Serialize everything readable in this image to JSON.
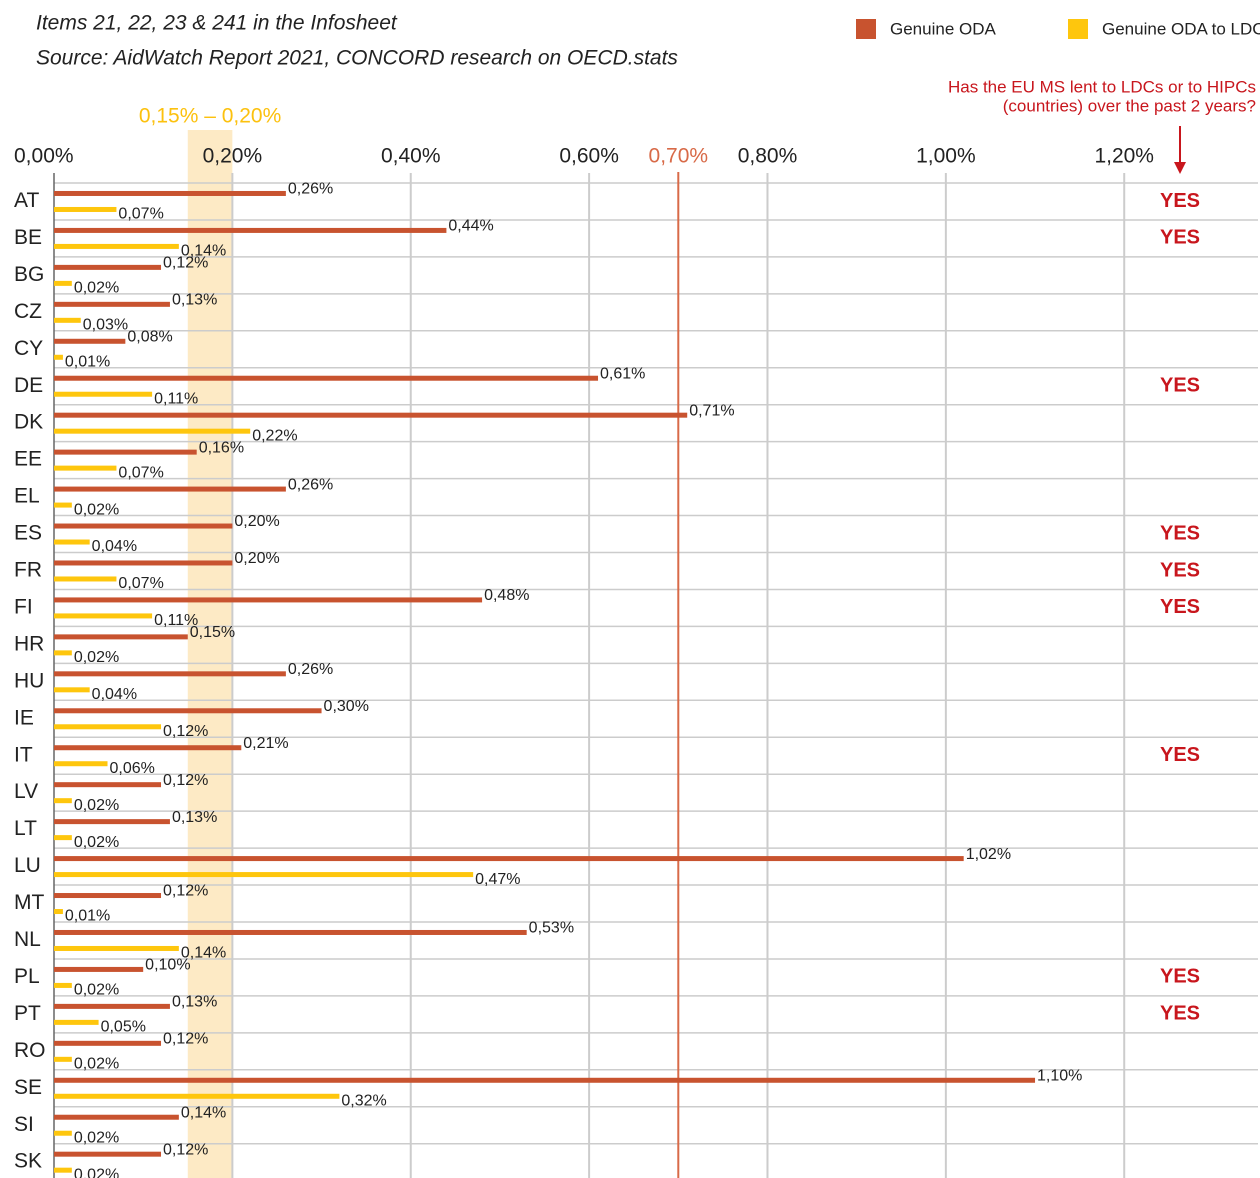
{
  "chart_data": {
    "type": "bar",
    "orientation": "horizontal",
    "title": [
      "Items 21, 22, 23 & 241 in the Infosheet",
      "Source: AidWatch Report 2021, CONCORD research on OECD.stats"
    ],
    "legend": "top-right",
    "categories": [
      "AT",
      "BE",
      "BG",
      "CZ",
      "CY",
      "DE",
      "DK",
      "EE",
      "EL",
      "ES",
      "FR",
      "FI",
      "HR",
      "HU",
      "IE",
      "IT",
      "LV",
      "LT",
      "LU",
      "MT",
      "NL",
      "PL",
      "PT",
      "RO",
      "SE",
      "SI",
      "SK"
    ],
    "series": [
      {
        "name": "Genuine ODA",
        "color": "#c8532f",
        "values": [
          0.26,
          0.44,
          0.12,
          0.13,
          0.08,
          0.61,
          0.71,
          0.16,
          0.26,
          0.2,
          0.2,
          0.48,
          0.15,
          0.26,
          0.3,
          0.21,
          0.12,
          0.13,
          1.02,
          0.12,
          0.53,
          0.1,
          0.13,
          0.12,
          1.1,
          0.14,
          0.12
        ],
        "value_labels": [
          "0,26%",
          "0,44%",
          "0,12%",
          "0,13%",
          "0,08%",
          "0,61%",
          "0,71%",
          "0,16%",
          "0,26%",
          "0,20%",
          "0,20%",
          "0,48%",
          "0,15%",
          "0,26%",
          "0,30%",
          "0,21%",
          "0,12%",
          "0,13%",
          "1,02%",
          "0,12%",
          "0,53%",
          "0,10%",
          "0,13%",
          "0,12%",
          "1,10%",
          "0,14%",
          "0,12%"
        ]
      },
      {
        "name": "Genuine ODA to LDCs",
        "color": "#fec60d",
        "values": [
          0.07,
          0.14,
          0.02,
          0.03,
          0.01,
          0.11,
          0.22,
          0.07,
          0.02,
          0.04,
          0.07,
          0.11,
          0.02,
          0.04,
          0.12,
          0.06,
          0.02,
          0.02,
          0.47,
          0.01,
          0.14,
          0.02,
          0.05,
          0.02,
          0.32,
          0.02,
          0.02
        ],
        "value_labels": [
          "0,07%",
          "0,14%",
          "0,02%",
          "0,03%",
          "0,01%",
          "0,11%",
          "0,22%",
          "0,07%",
          "0,02%",
          "0,04%",
          "0,07%",
          "0,11%",
          "0,02%",
          "0,04%",
          "0,12%",
          "0,06%",
          "0,02%",
          "0,02%",
          "0,47%",
          "0,01%",
          "0,14%",
          "0,02%",
          "0,05%",
          "0,02%",
          "0,32%",
          "0,02%",
          "0,02%"
        ]
      }
    ],
    "xlim": [
      0,
      1.35
    ],
    "xticks": [
      {
        "value": 0,
        "label": "0,00%"
      },
      {
        "value": 0.2,
        "label": "0,20%"
      },
      {
        "value": 0.4,
        "label": "0,40%"
      },
      {
        "value": 0.6,
        "label": "0,60%"
      },
      {
        "value": 0.8,
        "label": "0,80%"
      },
      {
        "value": 1.0,
        "label": "1,00%"
      },
      {
        "value": 1.2,
        "label": "1,20%"
      }
    ],
    "grid": true,
    "reference_band": {
      "range": [
        0.15,
        0.2
      ],
      "label": "0,15% – 0,20%",
      "color": "#fde6bb"
    },
    "reference_line": {
      "value": 0.7,
      "label": "0,70%",
      "color": "#d86a48"
    },
    "hipc_header": [
      "Has the EU MS lent to LDCs or to HIPCs",
      "(countries) over the past 2 years?"
    ],
    "hipc_lending": [
      "YES",
      "YES",
      null,
      null,
      null,
      "YES",
      null,
      null,
      null,
      "YES",
      "YES",
      "YES",
      null,
      null,
      null,
      "YES",
      null,
      null,
      null,
      null,
      null,
      "YES",
      "YES",
      null,
      null,
      null,
      null
    ]
  }
}
